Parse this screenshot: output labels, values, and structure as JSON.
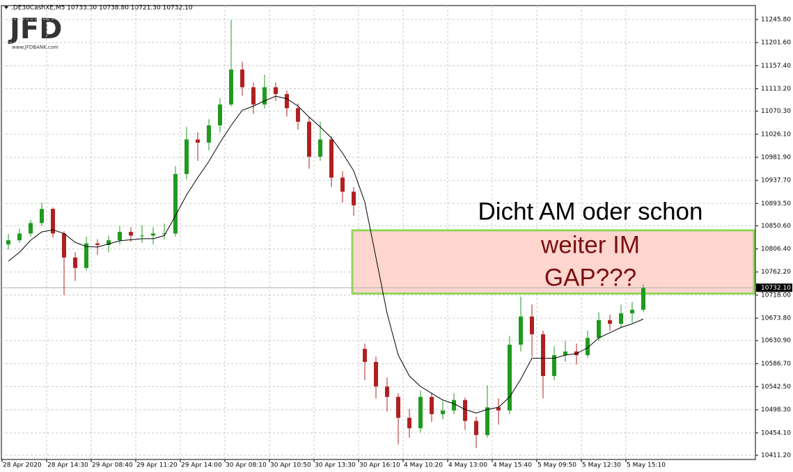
{
  "chart_data": {
    "type": "candlestick",
    "header": ".DE30CashXE,M5  10733.30 10738.80 10721.30 10732.10",
    "logo": "JFD",
    "logo_url": "www.JFDBANK.com",
    "categories": [
      "28 Apr 2020",
      null,
      null,
      null,
      "28 Apr 14:30",
      null,
      null,
      null,
      "29 Apr 08:40",
      null,
      null,
      null,
      "29 Apr 11:20",
      null,
      null,
      null,
      "29 Apr 14:00",
      null,
      null,
      null,
      "30 Apr 08:10",
      null,
      null,
      null,
      "30 Apr 10:50",
      null,
      null,
      null,
      "30 Apr 13:30",
      null,
      null,
      null,
      "30 Apr 16:10",
      null,
      null,
      null,
      "4 May 10:20",
      null,
      null,
      null,
      "4 May 13:00",
      null,
      null,
      null,
      "4 May 15:40",
      null,
      null,
      null,
      "5 May 09:50",
      null,
      null,
      null,
      "5 May 12:30",
      null,
      null,
      null,
      "5 May 15:10",
      null
    ],
    "candles": [
      [
        10815,
        10835,
        10805,
        10823
      ],
      [
        10823,
        10845,
        10818,
        10836
      ],
      [
        10836,
        10862,
        10830,
        10856
      ],
      [
        10856,
        10895,
        10850,
        10883
      ],
      [
        10883,
        10886,
        10828,
        10836
      ],
      [
        10836,
        10840,
        10718,
        10790
      ],
      [
        10790,
        10800,
        10745,
        10770
      ],
      [
        10770,
        10830,
        10765,
        10817
      ],
      [
        10817,
        10825,
        10795,
        10814
      ],
      [
        10814,
        10832,
        10800,
        10823
      ],
      [
        10823,
        10850,
        10815,
        10839
      ],
      [
        10839,
        10848,
        10820,
        10832
      ],
      [
        10832,
        10852,
        10818,
        10832
      ],
      [
        10832,
        10848,
        10815,
        10836
      ],
      [
        10836,
        10855,
        10825,
        10836
      ],
      [
        10836,
        10965,
        10830,
        10950
      ],
      [
        10950,
        11040,
        10940,
        11016
      ],
      [
        11016,
        11030,
        10975,
        11010
      ],
      [
        11010,
        11055,
        10995,
        11043
      ],
      [
        11043,
        11095,
        11030,
        11083
      ],
      [
        11083,
        11245,
        11080,
        11150
      ],
      [
        11150,
        11165,
        11100,
        11116
      ],
      [
        11116,
        11125,
        11065,
        11083
      ],
      [
        11083,
        11140,
        11075,
        11116
      ],
      [
        11116,
        11125,
        11090,
        11103
      ],
      [
        11103,
        11110,
        11060,
        11076
      ],
      [
        11076,
        11085,
        11035,
        11050
      ],
      [
        11050,
        11060,
        10960,
        10983
      ],
      [
        10983,
        11050,
        10975,
        11016
      ],
      [
        11016,
        11022,
        10925,
        10943
      ],
      [
        10943,
        10955,
        10895,
        10916
      ],
      [
        10916,
        10925,
        10870,
        10890
      ],
      [
        10615,
        10625,
        10555,
        10590
      ],
      [
        10590,
        10600,
        10520,
        10543
      ],
      [
        10543,
        10560,
        10495,
        10523
      ],
      [
        10523,
        10530,
        10432,
        10483
      ],
      [
        10483,
        10500,
        10445,
        10463
      ],
      [
        10463,
        10535,
        10455,
        10523
      ],
      [
        10523,
        10530,
        10475,
        10490
      ],
      [
        10490,
        10515,
        10480,
        10497
      ],
      [
        10497,
        10530,
        10490,
        10517
      ],
      [
        10517,
        10522,
        10460,
        10477
      ],
      [
        10477,
        10485,
        10425,
        10450
      ],
      [
        10450,
        10545,
        10445,
        10503
      ],
      [
        10503,
        10520,
        10470,
        10497
      ],
      [
        10497,
        10640,
        10490,
        10623
      ],
      [
        10623,
        10715,
        10610,
        10677
      ],
      [
        10677,
        10700,
        10600,
        10643
      ],
      [
        10643,
        10650,
        10520,
        10563
      ],
      [
        10563,
        10620,
        10555,
        10603
      ],
      [
        10603,
        10630,
        10590,
        10610
      ],
      [
        10610,
        10625,
        10585,
        10603
      ],
      [
        10603,
        10650,
        10598,
        10636
      ],
      [
        10636,
        10685,
        10630,
        10670
      ],
      [
        10670,
        10680,
        10650,
        10663
      ],
      [
        10663,
        10700,
        10655,
        10683
      ],
      [
        10683,
        10705,
        10665,
        10690
      ],
      [
        10690,
        10738.8,
        10685,
        10732.1
      ]
    ],
    "up_color": "#1f9a1f",
    "down_color": "#b02020",
    "ma": {
      "color": "#000000",
      "values": [
        10783,
        10800,
        10823,
        10839,
        10843,
        10836,
        10819,
        10811,
        10810,
        10816,
        10822,
        10824,
        10826,
        10826,
        10832,
        10870,
        10910,
        10943,
        10974,
        11010,
        11043,
        11072,
        11080,
        11090,
        11099,
        11094,
        11080,
        11059,
        11040,
        11019,
        10990,
        10956,
        10896,
        10790,
        10683,
        10603,
        10563,
        10543,
        10530,
        10517,
        10510,
        10499,
        10492,
        10499,
        10503,
        10523,
        10557,
        10597,
        10597,
        10597,
        10603,
        10606,
        10617,
        10636,
        10646,
        10656,
        10663,
        10672
      ]
    },
    "ylim": [
      10403.2,
      11272.5
    ],
    "yticks": [
      {
        "value": 11245.8,
        "label": "11245.80"
      },
      {
        "value": 11201.6,
        "label": "11201.60"
      },
      {
        "value": 11157.4,
        "label": "11157.40"
      },
      {
        "value": 11113.2,
        "label": "11113.20"
      },
      {
        "value": 11070.3,
        "label": "11070.30"
      },
      {
        "value": 11026.1,
        "label": "11026.10"
      },
      {
        "value": 10981.9,
        "label": "10981.90"
      },
      {
        "value": 10937.7,
        "label": "10937.70"
      },
      {
        "value": 10893.5,
        "label": "10893.50"
      },
      {
        "value": 10850.6,
        "label": "10850.60"
      },
      {
        "value": 10806.4,
        "label": "10806.40"
      },
      {
        "value": 10762.2,
        "label": "10762.20"
      },
      {
        "value": 10718,
        "label": "10718.00"
      },
      {
        "value": 10673.8,
        "label": "10673.80"
      },
      {
        "value": 10630.9,
        "label": "10630.90"
      },
      {
        "value": 10586.7,
        "label": "10586.70"
      },
      {
        "value": 10542.5,
        "label": "10542.50"
      },
      {
        "value": 10498.3,
        "label": "10498.30"
      },
      {
        "value": 10454.1,
        "label": "10454.10"
      },
      {
        "value": 10411.2,
        "label": "10411.20"
      }
    ],
    "grid": true,
    "current_price": {
      "value": 10732.1,
      "label": "10732.10"
    },
    "zone": {
      "low": 10721,
      "high": 10842,
      "fill": "#ffd6cf",
      "stroke": "#8fd65a"
    },
    "annotations": [
      {
        "text": "Dicht AM oder schon",
        "color": "#000000"
      },
      {
        "text": "weiter IM",
        "color": "#7a1010"
      },
      {
        "text": "GAP???",
        "color": "#7a1010"
      }
    ]
  }
}
